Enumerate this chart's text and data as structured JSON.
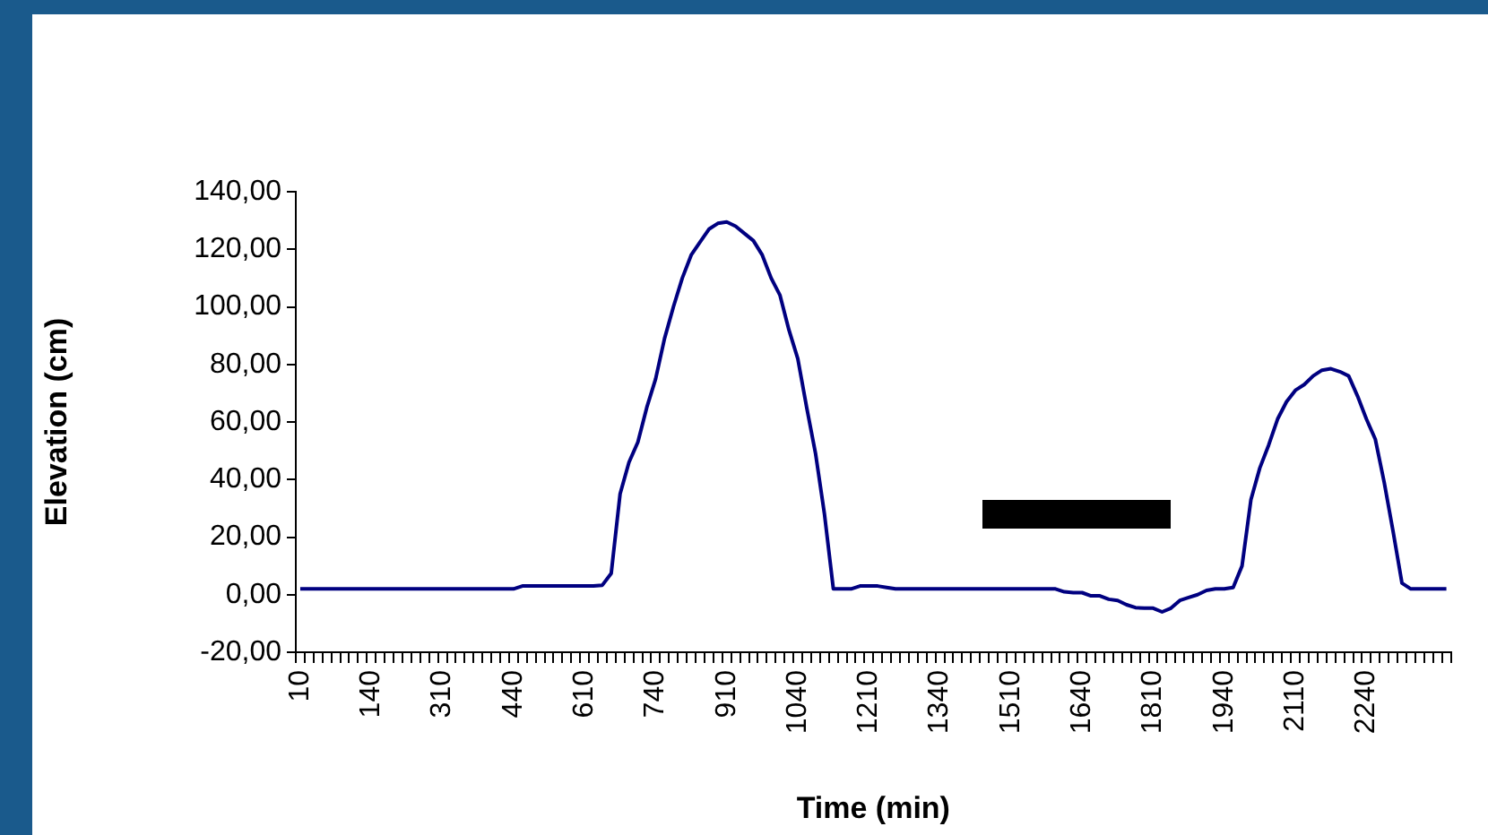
{
  "chart_data": {
    "type": "line",
    "xlabel": "Time (min)",
    "ylabel": "Elevation (cm)",
    "marker": "none",
    "line_style": "solid",
    "categories": [
      "10",
      null,
      null,
      null,
      null,
      null,
      null,
      null,
      "140",
      null,
      null,
      null,
      null,
      null,
      null,
      null,
      "310",
      null,
      null,
      null,
      null,
      null,
      null,
      null,
      "440",
      null,
      null,
      null,
      null,
      null,
      null,
      null,
      "610",
      null,
      null,
      null,
      null,
      null,
      null,
      null,
      "740",
      null,
      null,
      null,
      null,
      null,
      null,
      null,
      "910",
      null,
      null,
      null,
      null,
      null,
      null,
      null,
      "1040",
      null,
      null,
      null,
      null,
      null,
      null,
      null,
      "1210",
      null,
      null,
      null,
      null,
      null,
      null,
      null,
      "1340",
      null,
      null,
      null,
      null,
      null,
      null,
      null,
      "1510",
      null,
      null,
      null,
      null,
      null,
      null,
      null,
      "1640",
      null,
      null,
      null,
      null,
      null,
      null,
      null,
      "1810",
      null,
      null,
      null,
      null,
      null,
      null,
      null,
      "1940",
      null,
      null,
      null,
      null,
      null,
      null,
      null,
      "2110",
      null,
      null,
      null,
      null,
      null,
      null,
      null,
      "2240",
      null,
      null,
      null,
      null,
      null,
      null,
      null,
      null,
      null
    ],
    "series": [
      {
        "color": "#000080",
        "values": [
          2,
          2,
          2,
          2,
          2,
          2,
          2,
          2,
          2,
          2,
          2,
          2,
          2,
          2,
          2,
          2,
          2,
          2,
          2,
          2,
          2,
          2,
          2,
          2,
          2,
          3,
          3,
          3,
          3,
          3,
          3,
          3,
          3,
          3,
          3.3,
          7.4,
          35,
          46,
          53,
          65,
          75,
          89,
          100,
          110,
          118,
          122.5,
          127,
          129,
          129.5,
          128,
          125.5,
          123,
          118,
          110,
          104,
          92,
          82,
          65,
          49,
          28,
          2,
          2,
          2,
          3,
          3,
          3,
          2.5,
          2,
          2,
          2,
          2,
          2,
          2,
          2,
          2,
          2,
          2,
          2,
          2,
          2,
          2,
          2,
          2,
          2,
          2,
          2,
          1,
          0.7,
          0.7,
          -0.4,
          -0.4,
          -1.6,
          -2,
          -3.5,
          -4.5,
          -4.7,
          -4.7,
          -6,
          -4.7,
          -2,
          -1,
          0,
          1.5,
          2,
          2,
          2.5,
          10,
          33,
          44,
          52,
          61,
          67,
          71,
          73,
          76,
          78,
          78.5,
          77.5,
          76,
          69,
          61,
          54,
          39,
          22,
          4,
          2,
          2,
          2,
          2,
          2
        ]
      }
    ],
    "ylim": [
      -20,
      140
    ],
    "yticks": [
      {
        "value": -20,
        "label": "-20,00"
      },
      {
        "value": 0,
        "label": "0,00"
      },
      {
        "value": 20,
        "label": "20,00"
      },
      {
        "value": 40,
        "label": "40,00"
      },
      {
        "value": 60,
        "label": "60,00"
      },
      {
        "value": 80,
        "label": "80,00"
      },
      {
        "value": 100,
        "label": "100,00"
      },
      {
        "value": 120,
        "label": "120,00"
      },
      {
        "value": 140,
        "label": "140,00"
      }
    ]
  }
}
